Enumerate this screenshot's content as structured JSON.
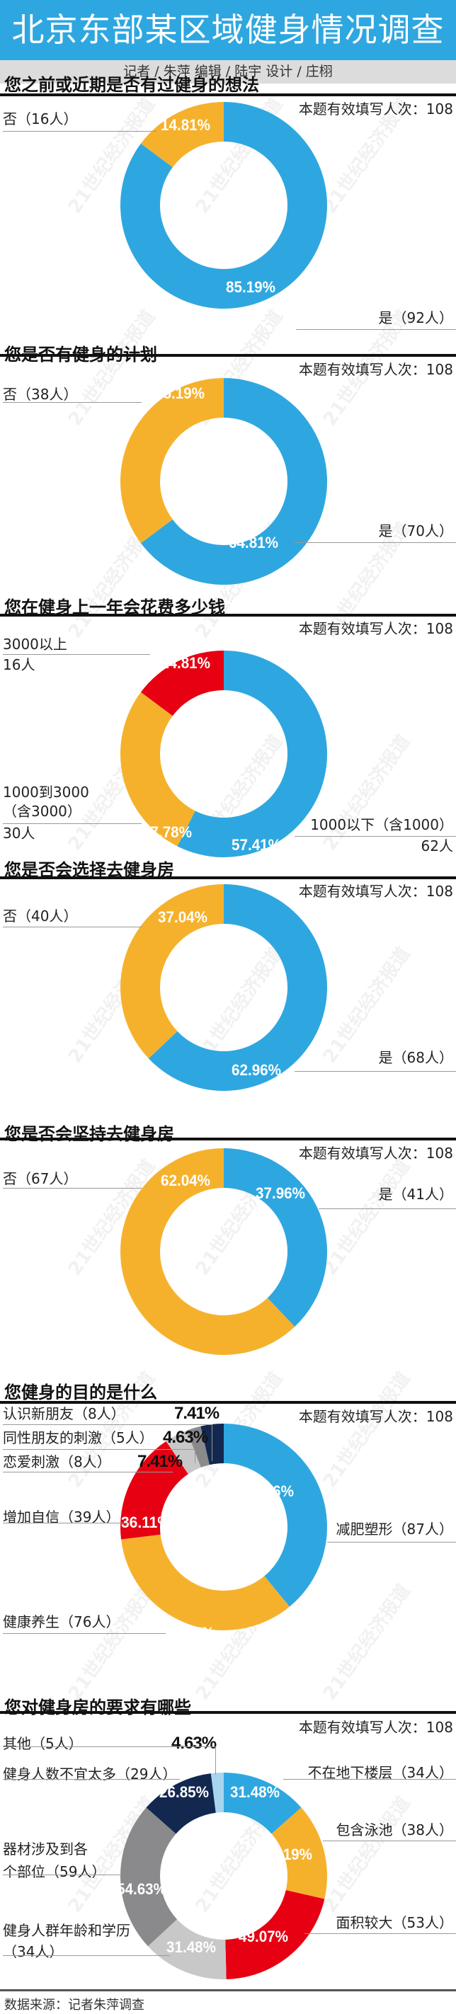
{
  "header": {
    "title": "北京东部某区域健身情况调查",
    "credits": "记者 / 朱萍   编辑 / 陆宇   设计 / 庄栩"
  },
  "colors": {
    "blue": "#2ea7e0",
    "yellow": "#f6b12c",
    "red": "#e60012",
    "light_grey": "#c8c8c8",
    "mid_grey": "#8a8a8c",
    "navy": "#13284f",
    "light_blue": "#a7d5f0",
    "header_band": "#2ea7e0",
    "credit_band": "#dcdcdc"
  },
  "watermark": "21世纪经济报道",
  "sections": [
    {
      "title": "您之前或近期是否有过健身的想法",
      "count_label": "本题有效填写人次：108",
      "labels": [
        {
          "text": "否（16人）"
        },
        {
          "text": "是（92人）"
        }
      ]
    },
    {
      "title": "您是否有健身的计划",
      "count_label": "本题有效填写人次：108",
      "labels": [
        {
          "text": "否（38人）"
        },
        {
          "text": "是（70人）"
        }
      ]
    },
    {
      "title": "您在健身上一年会花费多少钱",
      "count_label": "本题有效填写人次：108",
      "labels": [
        {
          "line1": "3000以上",
          "line2": "16人"
        },
        {
          "line1": "1000到3000",
          "line2": "（含3000）",
          "line3": "30人"
        },
        {
          "line1": "1000以下（含1000）",
          "line2": "62人"
        }
      ]
    },
    {
      "title": "您是否会选择去健身房",
      "count_label": "本题有效填写人次：108",
      "labels": [
        {
          "text": "否（40人）"
        },
        {
          "text": "是（68人）"
        }
      ]
    },
    {
      "title": "您是否会坚持去健身房",
      "count_label": "本题有效填写人次：108",
      "labels": [
        {
          "text": "否（67人）"
        },
        {
          "text": "是（41人）"
        }
      ]
    },
    {
      "title": "您健身的目的是什么",
      "count_label": "本题有效填写人次：108",
      "labels": [
        {
          "text": "认识新朋友（8人）",
          "pct": "7.41%"
        },
        {
          "text": "同性朋友的刺激（5人）",
          "pct": "4.63%"
        },
        {
          "text": "恋爱刺激（8人）",
          "pct": "7.41%"
        },
        {
          "text": "增加自信（39人）"
        },
        {
          "text": "健康养生（76人）"
        },
        {
          "text": "减肥塑形（87人）"
        }
      ]
    },
    {
      "title": "您对健身房的要求有哪些",
      "count_label": "本题有效填写人次：108",
      "labels": [
        {
          "text": "其他（5人）",
          "pct": "4.63%"
        },
        {
          "text": "健身人数不宜太多（29人）"
        },
        {
          "line1": "器材涉及到各",
          "line2": "个部位（59人）"
        },
        {
          "line1": "健身人群年龄和学历",
          "line2": "（34人）"
        },
        {
          "text": "不在地下楼层（34人）"
        },
        {
          "text": "包含泳池（38人）"
        },
        {
          "text": "面积较大（53人）"
        }
      ]
    }
  ],
  "footer": {
    "source": "数据来源：记者朱萍调查"
  },
  "chart_data": [
    {
      "type": "pie",
      "subtype": "donut",
      "title": "您之前或近期是否有过健身的想法",
      "total_respondents": 108,
      "categories": [
        "是",
        "否"
      ],
      "counts": [
        92,
        16
      ],
      "values": [
        85.19,
        14.81
      ],
      "value_labels": [
        "85.19%",
        "14.81%"
      ],
      "colors": [
        "#2ea7e0",
        "#f6b12c"
      ],
      "start": "12 o'clock, clockwise",
      "label_pos": [
        [
          354,
          407
        ],
        [
          262,
          178
        ]
      ]
    },
    {
      "type": "pie",
      "subtype": "donut",
      "title": "您是否有健身的计划",
      "total_respondents": 108,
      "categories": [
        "是",
        "否"
      ],
      "counts": [
        70,
        38
      ],
      "values": [
        64.81,
        35.19
      ],
      "value_labels": [
        "64.81%",
        "35.19%"
      ],
      "colors": [
        "#2ea7e0",
        "#f6b12c"
      ],
      "start": "12 o'clock, clockwise",
      "label_pos": [
        [
          358,
          768
        ],
        [
          254,
          557
        ]
      ]
    },
    {
      "type": "pie",
      "subtype": "donut",
      "title": "您在健身上一年会花费多少钱",
      "total_respondents": 108,
      "categories": [
        "1000以下（含1000）",
        "1000到3000（含3000）",
        "3000以上"
      ],
      "counts": [
        62,
        30,
        16
      ],
      "values": [
        57.41,
        27.78,
        14.81
      ],
      "value_labels": [
        "57.41%",
        "27.78%",
        "14.81%"
      ],
      "colors": [
        "#2ea7e0",
        "#f6b12c",
        "#e60012"
      ],
      "start": "12 o'clock, clockwise",
      "label_pos": [
        [
          362,
          1195
        ],
        [
          236,
          1177
        ],
        [
          262,
          938
        ]
      ]
    },
    {
      "type": "pie",
      "subtype": "donut",
      "title": "您是否会选择去健身房",
      "total_respondents": 108,
      "categories": [
        "是",
        "否"
      ],
      "counts": [
        68,
        40
      ],
      "values": [
        62.96,
        37.04
      ],
      "value_labels": [
        "62.96%",
        "37.04%"
      ],
      "colors": [
        "#2ea7e0",
        "#f6b12c"
      ],
      "start": "12 o'clock, clockwise",
      "label_pos": [
        [
          362,
          1513
        ],
        [
          258,
          1297
        ]
      ]
    },
    {
      "type": "pie",
      "subtype": "donut",
      "title": "您是否会坚持去健身房",
      "total_respondents": 108,
      "categories": [
        "是",
        "否"
      ],
      "counts": [
        41,
        67
      ],
      "values": [
        37.96,
        62.04
      ],
      "value_labels": [
        "37.96%",
        "62.04%"
      ],
      "colors": [
        "#2ea7e0",
        "#f6b12c"
      ],
      "start": "12 o'clock, clockwise",
      "label_pos": [
        [
          396,
          1687
        ],
        [
          262,
          1669
        ]
      ]
    },
    {
      "type": "pie",
      "subtype": "donut",
      "multi_select": true,
      "title": "您健身的目的是什么",
      "total_respondents": 108,
      "categories": [
        "减肥塑形",
        "健康养生",
        "增加自信",
        "恋爱刺激",
        "同性朋友的刺激",
        "认识新朋友"
      ],
      "counts": [
        87,
        76,
        39,
        8,
        5,
        8
      ],
      "values": [
        80.56,
        70.37,
        36.11,
        7.41,
        4.63,
        7.41
      ],
      "value_labels": [
        "80.56%",
        "70.37%",
        "36.11%",
        "",
        "",
        ""
      ],
      "colors": [
        "#2ea7e0",
        "#f6b12c",
        "#e60012",
        "#c8c8c8",
        "#8a8a8c",
        "#13284f"
      ],
      "start": "12 o'clock, clockwise",
      "label_pos": [
        [
          380,
          2108
        ],
        [
          268,
          2308
        ],
        [
          206,
          2152
        ],
        null,
        null,
        null
      ]
    },
    {
      "type": "pie",
      "subtype": "donut",
      "multi_select": true,
      "title": "您对健身房的要求有哪些",
      "total_respondents": 108,
      "categories": [
        "不在地下楼层",
        "包含泳池",
        "面积较大",
        "健身人群年龄和学历",
        "器材涉及到各个部位",
        "健身人数不宜太多",
        "其他"
      ],
      "counts": [
        34,
        38,
        53,
        34,
        59,
        29,
        5
      ],
      "values": [
        31.48,
        35.19,
        49.07,
        31.48,
        54.63,
        26.85,
        4.63
      ],
      "value_labels": [
        "31.48%",
        "35.19%",
        "49.07%",
        "31.48%",
        "54.63%",
        "26.85%",
        ""
      ],
      "colors": [
        "#2ea7e0",
        "#f6b12c",
        "#e60012",
        "#c8c8c8",
        "#8a8a8c",
        "#13284f",
        "#a7d5f0"
      ],
      "start": "12 o'clock, clockwise",
      "label_pos": [
        [
          360,
          2533
        ],
        [
          406,
          2621
        ],
        [
          372,
          2737
        ],
        [
          270,
          2752
        ],
        [
          200,
          2670
        ],
        [
          260,
          2533
        ],
        null
      ]
    }
  ]
}
